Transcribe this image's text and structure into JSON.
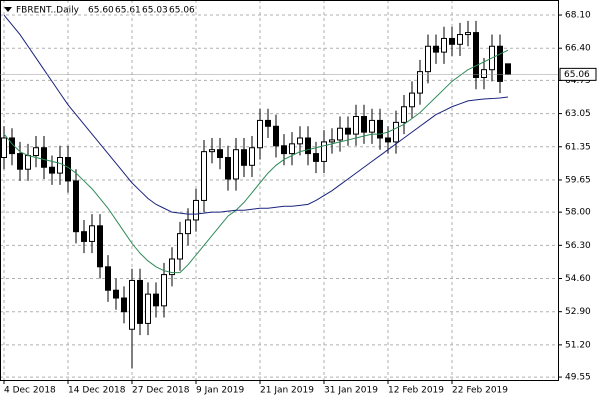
{
  "chart_data": {
    "type": "candlestick",
    "title": "FBRENT..Daily",
    "ohlc_labels": [
      "65.60",
      "65.61",
      "65.03",
      "65.06"
    ],
    "categories": [
      "4 Dec 2018",
      null,
      null,
      null,
      null,
      null,
      null,
      null,
      "14 Dec 2018",
      null,
      null,
      null,
      null,
      null,
      null,
      null,
      "27 Dec 2018",
      null,
      null,
      null,
      null,
      null,
      null,
      null,
      "9 Jan 2019",
      null,
      null,
      null,
      null,
      null,
      null,
      null,
      "21 Jan 2019",
      null,
      null,
      null,
      null,
      null,
      null,
      null,
      "31 Jan 2019",
      null,
      null,
      null,
      null,
      null,
      null,
      null,
      "12 Feb 2019",
      null,
      null,
      null,
      null,
      null,
      null,
      null,
      "22 Feb 2019",
      null,
      null,
      null,
      null,
      null,
      null,
      null
    ],
    "open": [
      60.8,
      61.8,
      61.0,
      60.2,
      60.9,
      61.3,
      60.3,
      60.0,
      60.8,
      59.6,
      57.0,
      56.5,
      57.3,
      55.2,
      54.0,
      53.6,
      52.0,
      54.5,
      52.3,
      53.8,
      53.2,
      54.8,
      55.6,
      56.9,
      57.6,
      58.6,
      61.1,
      61.2,
      60.8,
      59.7,
      61.2,
      60.4,
      61.3,
      62.7,
      62.4,
      61.4,
      61.0,
      61.5,
      61.8,
      61.0,
      60.6,
      61.6,
      61.7,
      62.3,
      62.0,
      62.9,
      62.1,
      62.7,
      61.8,
      61.6,
      62.6,
      63.4,
      64.1,
      65.2,
      66.5,
      66.2,
      66.9,
      66.6,
      67.1,
      67.2,
      64.9,
      65.3,
      66.5,
      65.6
    ],
    "high": [
      62.4,
      62.3,
      61.6,
      61.5,
      61.9,
      61.9,
      60.9,
      61.4,
      61.4,
      60.2,
      57.6,
      57.9,
      57.9,
      55.8,
      54.6,
      54.2,
      55.1,
      55.1,
      54.4,
      54.4,
      55.4,
      56.2,
      57.5,
      58.2,
      59.2,
      61.7,
      61.8,
      61.8,
      61.4,
      61.8,
      61.8,
      61.9,
      63.3,
      63.3,
      63.0,
      62.0,
      62.1,
      62.4,
      62.4,
      61.6,
      62.2,
      62.3,
      62.9,
      62.9,
      63.5,
      63.5,
      63.3,
      63.3,
      62.4,
      63.2,
      64.0,
      64.7,
      65.8,
      67.1,
      67.1,
      67.5,
      67.5,
      67.7,
      67.8,
      67.8,
      65.9,
      67.1,
      67.1,
      65.61
    ],
    "low": [
      60.2,
      60.4,
      59.6,
      59.6,
      60.3,
      59.7,
      59.4,
      59.4,
      59.0,
      56.4,
      55.9,
      55.9,
      54.6,
      53.4,
      53.0,
      52.3,
      50.0,
      51.7,
      51.7,
      52.6,
      52.6,
      54.2,
      55.0,
      56.3,
      57.0,
      58.0,
      60.5,
      60.2,
      59.1,
      59.1,
      59.8,
      59.8,
      60.7,
      61.8,
      60.8,
      60.4,
      60.4,
      60.9,
      60.4,
      60.0,
      60.0,
      61.0,
      61.1,
      61.4,
      61.4,
      61.5,
      61.5,
      61.2,
      61.0,
      61.0,
      62.0,
      62.8,
      63.5,
      64.6,
      65.6,
      65.6,
      66.0,
      66.0,
      66.5,
      64.3,
      64.3,
      64.7,
      64.1,
      65.03
    ],
    "close": [
      61.8,
      61.0,
      60.2,
      60.9,
      61.3,
      60.3,
      60.0,
      60.8,
      59.6,
      57.0,
      56.5,
      57.3,
      55.2,
      54.0,
      53.6,
      52.9,
      54.5,
      52.3,
      53.8,
      53.2,
      54.8,
      55.6,
      56.9,
      57.6,
      58.6,
      61.1,
      61.2,
      60.8,
      59.7,
      61.2,
      60.4,
      61.3,
      62.7,
      62.4,
      61.4,
      61.0,
      61.5,
      61.8,
      61.0,
      60.6,
      61.6,
      61.7,
      62.3,
      62.0,
      62.9,
      62.1,
      62.7,
      61.8,
      61.6,
      62.6,
      63.4,
      64.1,
      65.2,
      66.5,
      66.2,
      66.9,
      66.6,
      67.1,
      67.2,
      64.9,
      65.3,
      66.5,
      64.7,
      65.06
    ],
    "up_color": "#ffffff",
    "down_color": "#000000",
    "lines": [
      {
        "color": "#2e8b57",
        "values": [
          62.0,
          61.5,
          61.1,
          60.9,
          60.8,
          60.7,
          60.6,
          60.5,
          60.3,
          60.0,
          59.6,
          59.2,
          58.7,
          58.2,
          57.6,
          57.0,
          56.4,
          55.9,
          55.5,
          55.2,
          55.0,
          54.9,
          54.9,
          55.3,
          55.8,
          56.3,
          56.8,
          57.3,
          57.8,
          58.1,
          58.5,
          59.0,
          59.5,
          60.0,
          60.4,
          60.7,
          60.9,
          61.1,
          61.2,
          61.3,
          61.4,
          61.5,
          61.6,
          61.7,
          61.8,
          61.9,
          62.0,
          62.0,
          62.1,
          62.3,
          62.5,
          62.8,
          63.1,
          63.5,
          63.9,
          64.3,
          64.7,
          65.0,
          65.3,
          65.5,
          65.7,
          65.9,
          66.1,
          66.3
        ]
      },
      {
        "color": "#1a237e",
        "values": [
          68.1,
          67.6,
          67.1,
          66.5,
          65.9,
          65.3,
          64.7,
          64.1,
          63.5,
          63.0,
          62.5,
          62.0,
          61.5,
          61.0,
          60.5,
          60.0,
          59.5,
          59.1,
          58.7,
          58.4,
          58.2,
          58.0,
          57.95,
          57.9,
          57.9,
          57.95,
          58.0,
          58.0,
          58.05,
          58.1,
          58.1,
          58.15,
          58.2,
          58.2,
          58.25,
          58.3,
          58.3,
          58.35,
          58.4,
          58.6,
          58.85,
          59.1,
          59.4,
          59.7,
          60.0,
          60.3,
          60.6,
          60.9,
          61.2,
          61.5,
          61.8,
          62.1,
          62.4,
          62.7,
          63.0,
          63.2,
          63.4,
          63.55,
          63.7,
          63.75,
          63.8,
          63.82,
          63.85,
          63.9
        ]
      }
    ],
    "last_price": {
      "value": 65.06,
      "label": "65.06"
    },
    "ylim": [
      49.4,
      68.87
    ],
    "yticks": [
      {
        "value": 68.1,
        "label": "68.10"
      },
      {
        "value": 66.4,
        "label": "66.40"
      },
      64.75,
      63.05,
      61.35,
      59.65,
      {
        "value": 58.0,
        "label": "58.00"
      },
      {
        "value": 56.3,
        "label": "56.30"
      },
      {
        "value": 54.6,
        "label": "54.60"
      },
      {
        "value": 52.9,
        "label": "52.90"
      },
      {
        "value": 51.2,
        "label": "51.20"
      },
      49.55
    ],
    "grid": true
  }
}
